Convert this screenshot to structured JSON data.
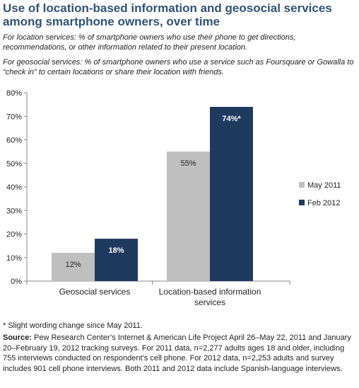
{
  "title": "Use of location-based information and geosocial services among smartphone owners, over time",
  "notes": [
    "For location services: % of smartphone owners who use their phone to get directions, recommendations, or other information related to their present location.",
    "For geosocial services: % of smartphone owners who use a service such as Foursquare or Gowalla to “check in” to certain locations or share their location with friends."
  ],
  "footnote": "* Slight wording change since May 2011.",
  "source": {
    "label": "Source:",
    "text": "Pew Research Center’s Internet & American Life Project April 26–May 22, 2011 and January 20–February 19, 2012 tracking surveys. For 2011 data, n=2,277 adults ages 18 and older, including 755 interviews conducted on respondent’s cell phone. For 2012 data, n=2,253 adults and survey includes 901 cell phone interviews. Both 2011 and 2012 data include Spanish-language interviews."
  },
  "chart_data": {
    "type": "bar",
    "categories": [
      [
        "Geosocial services"
      ],
      [
        "Location-based information",
        "services"
      ]
    ],
    "series": [
      {
        "name": "May 2011",
        "color": "#bfbfbf",
        "values": [
          12,
          55
        ],
        "labels": [
          "12%",
          "55%"
        ],
        "label_color": "#222222"
      },
      {
        "name": "Feb 2012",
        "color": "#1f3a5f",
        "values": [
          18,
          74
        ],
        "labels": [
          "18%",
          "74%*"
        ],
        "label_color": "#ffffff"
      }
    ],
    "ylim": [
      0,
      80
    ],
    "yticks": [
      "0%",
      "10%",
      "20%",
      "30%",
      "40%",
      "50%",
      "60%",
      "70%",
      "80%"
    ],
    "legend_position": "right",
    "grid": false
  }
}
